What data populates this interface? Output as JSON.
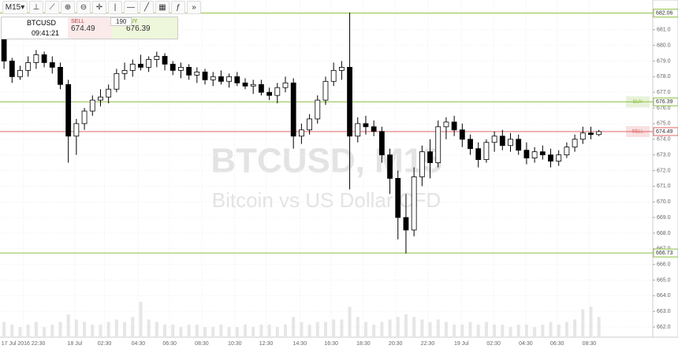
{
  "toolbar": {
    "timeframe": "M15"
  },
  "ticker": {
    "symbol": "BTCUSD",
    "time": "09:41:21",
    "sell_label": "SELL",
    "sell_price": "674.49",
    "spread": "190",
    "buy_label": "BUY",
    "buy_price": "676.39"
  },
  "chart_data": {
    "type": "candlestick",
    "watermark": [
      "BTCUSD, M15",
      "Bitcoin vs US Dollar CFD"
    ],
    "x": [
      0.5,
      1.5,
      2.5,
      3.5,
      4.5,
      5.5,
      6.5,
      7.5,
      8.5,
      9.5,
      10.5,
      11.5,
      12.5,
      13.5,
      14.5,
      15.5,
      16.5,
      17.5,
      18.5,
      19.5,
      20.5,
      21.5,
      22.5,
      23.5,
      24.5,
      25.5,
      26.5,
      27.5,
      28.5,
      29.5,
      30.5,
      31.5,
      32.5,
      33.5,
      34.5,
      35.5,
      36.5,
      37.5,
      38.5,
      39.5,
      40.5,
      41.5,
      42.5,
      43.5,
      44.5,
      45.5,
      46.5,
      47.5,
      48.5,
      49.5,
      50.5,
      51.5,
      52.5,
      53.5,
      54.5,
      55.5,
      56.5,
      57.5,
      58.5,
      59.5,
      60.5,
      61.5,
      62.5,
      63.5,
      64.5,
      65.5,
      66.5,
      67.5,
      68.5,
      69.5,
      70.5,
      71.5,
      72.5,
      73.5,
      74.5
    ],
    "open": [
      680.4,
      679,
      678,
      678.4,
      678.9,
      679.4,
      678.9,
      678.6,
      677.5,
      674.2,
      675,
      675.8,
      676.5,
      676.7,
      677.2,
      678.2,
      678.4,
      678.8,
      678.6,
      679.1,
      679.3,
      678.8,
      678.4,
      678.6,
      678.1,
      678.3,
      677.8,
      678,
      677.7,
      678,
      677.6,
      677.4,
      677.5,
      677,
      676.8,
      677.3,
      677.6,
      674.2,
      674.6,
      675.3,
      676.5,
      677.7,
      678.4,
      678.6,
      674.2,
      675,
      674.8,
      674.5,
      673,
      671.5,
      669,
      668.2,
      671.6,
      673.2,
      672.5,
      674.8,
      675.1,
      674.6,
      674,
      673.4,
      672.7,
      673.8,
      674.2,
      673.6,
      674,
      673.3,
      672.8,
      673.2,
      673,
      672.6,
      673,
      673.5,
      674,
      674.4,
      674.3
    ],
    "high": [
      680.6,
      679.2,
      678.7,
      679.3,
      679.7,
      679.6,
      679.3,
      678.9,
      677.8,
      675.3,
      676,
      676.8,
      677.2,
      677.5,
      678.5,
      678.9,
      679.1,
      679.4,
      679.3,
      679.6,
      679.5,
      679,
      678.9,
      678.8,
      678.6,
      678.5,
      678.3,
      678.4,
      678.2,
      678.3,
      677.9,
      677.8,
      677.8,
      677.3,
      677.6,
      678,
      677.9,
      675,
      675.6,
      676.8,
      678,
      678.9,
      679,
      682.1,
      675.4,
      675.5,
      675.2,
      674.8,
      673.4,
      672,
      670.5,
      672.2,
      673.6,
      674,
      675.2,
      675.4,
      675.5,
      675,
      674.3,
      673.8,
      674,
      674.5,
      674.6,
      674.4,
      674.3,
      673.8,
      673.5,
      673.6,
      673.4,
      673.3,
      673.8,
      674.3,
      674.8,
      674.8,
      674.6
    ],
    "low": [
      678.5,
      677.6,
      677.8,
      678,
      678.5,
      678.6,
      678.2,
      677.2,
      672.5,
      673,
      674.6,
      675.5,
      676.1,
      676.3,
      677,
      677.8,
      678,
      678.4,
      678.3,
      678.6,
      678.4,
      678.1,
      677.9,
      677.8,
      677.6,
      677.5,
      677.4,
      677.5,
      677.3,
      677.4,
      677.2,
      676.9,
      676.8,
      676.5,
      676.3,
      677,
      673.4,
      673.7,
      674.3,
      675,
      676.2,
      677.4,
      677.8,
      670.8,
      673.8,
      674.3,
      674.2,
      672.5,
      670.5,
      667.6,
      666.7,
      667.8,
      671,
      671.5,
      672.2,
      674,
      674.2,
      673.5,
      673,
      672.2,
      672.5,
      673.2,
      673.3,
      673.2,
      673,
      672.4,
      672.5,
      672.7,
      672.2,
      672.3,
      672.8,
      673.2,
      673.7,
      674,
      674.2
    ],
    "close": [
      679,
      678,
      678.4,
      678.9,
      679.4,
      678.9,
      678.6,
      677.5,
      674.2,
      675,
      675.8,
      676.5,
      676.7,
      677.2,
      678.2,
      678.4,
      678.8,
      678.6,
      679.1,
      679.3,
      678.8,
      678.4,
      678.6,
      678.1,
      678.3,
      677.8,
      678,
      677.7,
      678,
      677.6,
      677.4,
      677.5,
      677,
      676.8,
      677.3,
      677.6,
      674.2,
      674.6,
      675.3,
      676.5,
      677.7,
      678.4,
      678.6,
      674.2,
      675,
      674.8,
      674.5,
      673,
      671.5,
      669,
      668.2,
      671.6,
      673.2,
      672.5,
      674.8,
      675.1,
      674.6,
      674,
      673.4,
      672.7,
      673.8,
      674.2,
      673.6,
      674,
      673.3,
      672.8,
      673.2,
      673,
      672.6,
      673,
      673.5,
      674,
      674.4,
      674.3,
      674.49
    ],
    "volume": [
      6,
      5,
      4,
      5,
      6,
      4,
      5,
      6,
      9,
      7,
      6,
      5,
      5,
      6,
      7,
      6,
      8,
      14,
      7,
      6,
      5,
      5,
      4,
      5,
      5,
      4,
      4,
      5,
      4,
      4,
      5,
      4,
      5,
      5,
      4,
      5,
      8,
      6,
      5,
      6,
      6,
      7,
      7,
      12,
      8,
      6,
      5,
      6,
      7,
      8,
      9,
      8,
      7,
      6,
      7,
      6,
      5,
      5,
      6,
      5,
      6,
      5,
      5,
      4,
      5,
      5,
      4,
      5,
      6,
      5,
      6,
      7,
      11,
      12,
      8
    ],
    "levels": [
      {
        "value": 682.06,
        "color": "#8cbf3f"
      },
      {
        "value": 676.39,
        "color": "#8cbf3f",
        "label": "BUY"
      },
      {
        "value": 674.49,
        "color": "#e06666",
        "label": "SELL"
      },
      {
        "value": 666.73,
        "color": "#8cbf3f"
      }
    ],
    "xlim": [
      0,
      81.2
    ],
    "xticks": [
      {
        "value": 2.9,
        "label": "17 Jul 2016 22:30"
      },
      {
        "value": 9.3,
        "label": "18 Jul"
      },
      {
        "value": 13,
        "label": "02:30"
      },
      {
        "value": 17.2,
        "label": "04:30"
      },
      {
        "value": 21.1,
        "label": "06:30"
      },
      {
        "value": 25.1,
        "label": "08:30"
      },
      {
        "value": 29.2,
        "label": "10:30"
      },
      {
        "value": 33.1,
        "label": "12:30"
      },
      {
        "value": 37.3,
        "label": "14:30"
      },
      {
        "value": 41.2,
        "label": "16:30"
      },
      {
        "value": 45.2,
        "label": "18:30"
      },
      {
        "value": 49.2,
        "label": "20:30"
      },
      {
        "value": 53.2,
        "label": "22:30"
      },
      {
        "value": 57.4,
        "label": "19 Jul"
      },
      {
        "value": 61.4,
        "label": "02:30"
      },
      {
        "value": 65.4,
        "label": "04:30"
      },
      {
        "value": 69.3,
        "label": "06:30"
      },
      {
        "value": 73.3,
        "label": "08:30"
      }
    ],
    "ylim": [
      661.35,
      682.9
    ],
    "yticks": [
      {
        "value": 662,
        "label": "662.0"
      },
      {
        "value": 663,
        "label": "663.0"
      },
      {
        "value": 664,
        "label": "664.0"
      },
      {
        "value": 665,
        "label": "665.0"
      },
      {
        "value": 666,
        "label": "666.0"
      },
      {
        "value": 667,
        "label": "667.0"
      },
      {
        "value": 668,
        "label": "668.0"
      },
      {
        "value": 669,
        "label": "669.0"
      },
      {
        "value": 670,
        "label": "670.0"
      },
      {
        "value": 671,
        "label": "671.0"
      },
      {
        "value": 672,
        "label": "672.0"
      },
      {
        "value": 673,
        "label": "673.0"
      },
      {
        "value": 674,
        "label": "674.0"
      },
      {
        "value": 675,
        "label": "675.0"
      },
      {
        "value": 676,
        "label": "676.0"
      },
      {
        "value": 677,
        "label": "677.0"
      },
      {
        "value": 678,
        "label": "678.0"
      },
      {
        "value": 679,
        "label": "679.0"
      },
      {
        "value": 680,
        "label": "680.0"
      },
      {
        "value": 681,
        "label": "681.0"
      }
    ],
    "grid": true
  }
}
